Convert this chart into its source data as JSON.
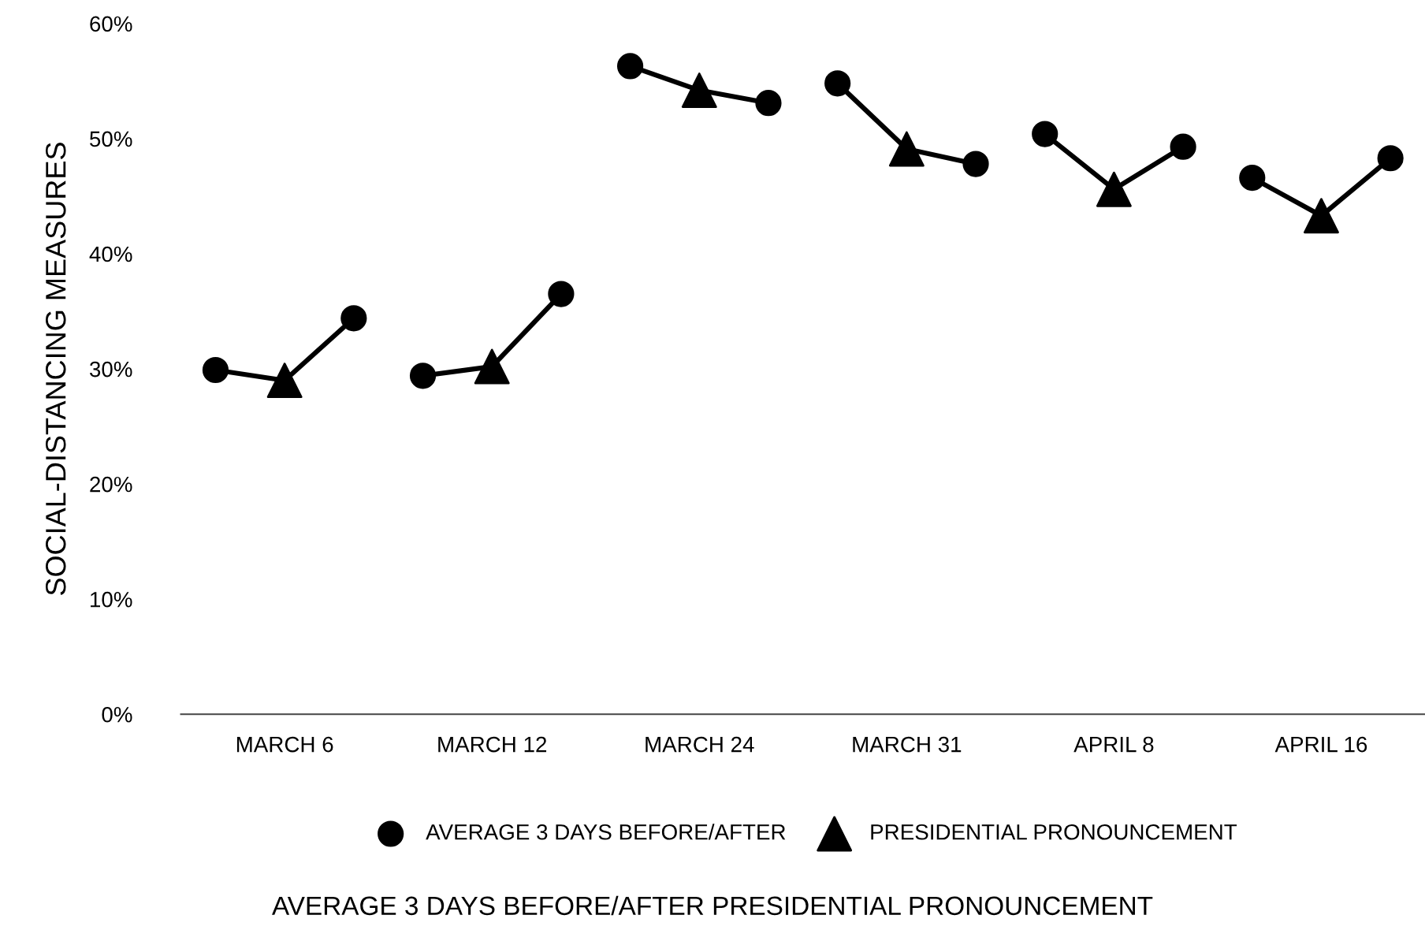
{
  "chart_data": {
    "type": "scatter",
    "annotations": [
      "AVERAGE 3 DAYS BEFORE/AFTER PRESIDENTIAL PRONOUNCEMENT"
    ],
    "ylabel": "SOCIAL-DISTANCING MEASURES",
    "categories": [
      null,
      "MARCH 6",
      null,
      null,
      "MARCH 12",
      null,
      null,
      "MARCH 24",
      null,
      null,
      "MARCH 31",
      null,
      null,
      "APRIL 8",
      null,
      null,
      "APRIL 16",
      null
    ],
    "ylim": [
      0,
      60
    ],
    "yticks": [
      {
        "value": 0,
        "label": "0%"
      },
      {
        "value": 10,
        "label": "10%"
      },
      {
        "value": 20,
        "label": "20%"
      },
      {
        "value": 30,
        "label": "30%"
      },
      {
        "value": 40,
        "label": "40%"
      },
      {
        "value": 50,
        "label": "50%"
      },
      {
        "value": 60,
        "label": "60%"
      }
    ],
    "grid": false,
    "legend": "bottom",
    "series": [
      {
        "type": "line",
        "color": "#000000",
        "marker": "none",
        "values": [
          29.9,
          29.0,
          34.4,
          null,
          null,
          null,
          null,
          null,
          null,
          null,
          null,
          null,
          null,
          null,
          null,
          null,
          null,
          null
        ]
      },
      {
        "type": "line",
        "color": "#000000",
        "marker": "none",
        "values": [
          null,
          null,
          null,
          29.4,
          30.2,
          36.5,
          null,
          null,
          null,
          null,
          null,
          null,
          null,
          null,
          null,
          null,
          null,
          null
        ]
      },
      {
        "type": "line",
        "color": "#000000",
        "marker": "none",
        "values": [
          null,
          null,
          null,
          null,
          null,
          null,
          56.3,
          54.2,
          53.1,
          null,
          null,
          null,
          null,
          null,
          null,
          null,
          null,
          null
        ]
      },
      {
        "type": "line",
        "color": "#000000",
        "marker": "none",
        "values": [
          null,
          null,
          null,
          null,
          null,
          null,
          null,
          null,
          null,
          54.8,
          49.1,
          47.8,
          null,
          null,
          null,
          null,
          null,
          null
        ]
      },
      {
        "type": "line",
        "color": "#000000",
        "marker": "none",
        "values": [
          null,
          null,
          null,
          null,
          null,
          null,
          null,
          null,
          null,
          null,
          null,
          null,
          50.4,
          45.6,
          49.3,
          null,
          null,
          null
        ]
      },
      {
        "type": "line",
        "color": "#000000",
        "marker": "none",
        "values": [
          null,
          null,
          null,
          null,
          null,
          null,
          null,
          null,
          null,
          null,
          null,
          null,
          null,
          null,
          null,
          46.6,
          43.3,
          48.3
        ]
      },
      {
        "name": "AVERAGE 3 DAYS BEFORE/AFTER",
        "color": "#000000",
        "marker": "circle",
        "values": [
          29.9,
          null,
          34.4,
          29.4,
          null,
          36.5,
          56.3,
          null,
          53.1,
          54.8,
          null,
          47.8,
          50.4,
          null,
          49.3,
          46.6,
          null,
          48.3
        ]
      },
      {
        "name": "PRESIDENTIAL PRONOUNCEMENT",
        "color": "#000000",
        "marker": "triangle",
        "values": [
          null,
          29.0,
          null,
          null,
          30.2,
          null,
          null,
          54.2,
          null,
          null,
          49.1,
          null,
          null,
          45.6,
          null,
          null,
          43.3,
          null
        ]
      }
    ]
  }
}
